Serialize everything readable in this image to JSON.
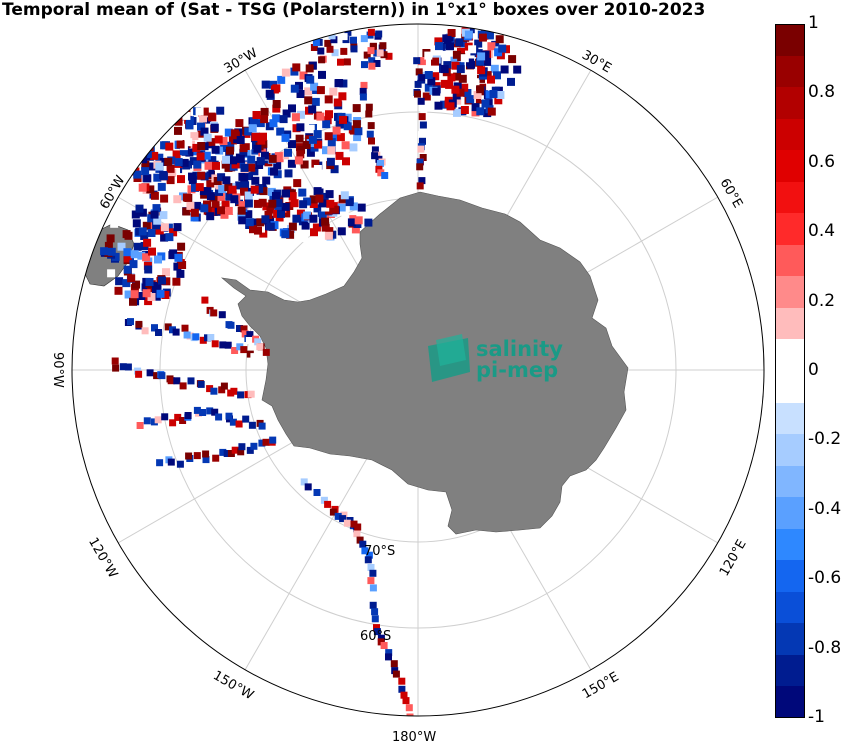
{
  "title": "Temporal mean of (Sat - TSG (Polarstern)) in 1°x1° boxes over 2010-2023",
  "logo": {
    "line1": "salinity",
    "line2": "pi-mep",
    "color": "#1a9a86"
  },
  "lon_labels": [
    "30°W",
    "30°E",
    "60°W",
    "60°E",
    "90°W",
    "120°W",
    "120°E",
    "150°W",
    "150°E",
    "180°W"
  ],
  "lat_labels": [
    "70°S",
    "60°S"
  ],
  "colorbar": {
    "ticks": [
      "1",
      "0.8",
      "0.6",
      "0.4",
      "0.2",
      "0",
      "-0.2",
      "-0.4",
      "-0.6",
      "-0.8",
      "-1"
    ],
    "colors": [
      "#7a0000",
      "#990000",
      "#b20000",
      "#cc0000",
      "#e00000",
      "#f21010",
      "#ff2a2a",
      "#ff5a5a",
      "#ff8a8a",
      "#ffbcbc",
      "#ffffff",
      "#ffffff",
      "#c8e0ff",
      "#a6ccff",
      "#80b6ff",
      "#5aa0ff",
      "#2e88ff",
      "#1466f0",
      "#0a4fd8",
      "#0438b4",
      "#001c90",
      "#00087a"
    ]
  },
  "land_color": "#808080"
}
